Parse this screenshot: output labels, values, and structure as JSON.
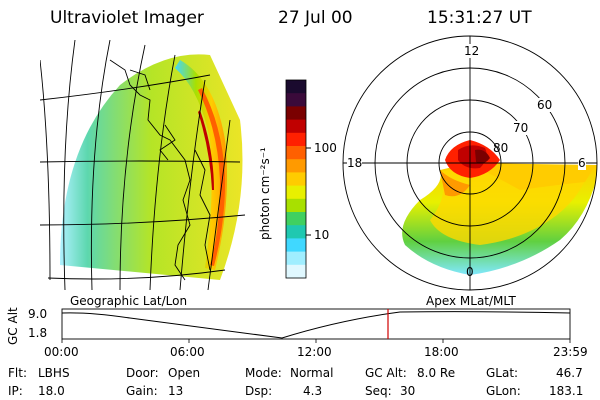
{
  "header": {
    "instrument": "Ultraviolet Imager",
    "date": "27 Jul 00",
    "time": "15:31:27 UT"
  },
  "colorbar": {
    "unit_label": "photon cm⁻²s⁻¹",
    "ticks": [
      "100",
      "10"
    ],
    "colors": [
      "#1a0a2e",
      "#3a0a3a",
      "#7a0000",
      "#c00000",
      "#ff2000",
      "#ff6000",
      "#ff9a00",
      "#ffcc00",
      "#e8f000",
      "#a8e000",
      "#40d060",
      "#20c8b0",
      "#40d8ff",
      "#a0eeff",
      "#e0f8ff"
    ]
  },
  "polar": {
    "ring_labels": [
      "80",
      "70",
      "60"
    ],
    "mlt_labels": {
      "top": "12",
      "left": "18",
      "right": "6",
      "bottom": "0"
    }
  },
  "timeline": {
    "left_title": "Geographic Lat/Lon",
    "right_title": "Apex MLat/MLT",
    "axis_label": "GC Alt",
    "y_ticks": [
      "9.0",
      "1.8"
    ],
    "x_ticks": [
      "00:00",
      "06:00",
      "12:00",
      "18:00",
      "23:59"
    ],
    "marker_time": "15:31"
  },
  "info": {
    "filter_label": "Flt:",
    "filter_value": "LBHS",
    "ip_label": "IP:",
    "ip_value": "18.0",
    "door_label": "Door:",
    "door_value": "Open",
    "gain_label": "Gain:",
    "gain_value": "13",
    "mode_label": "Mode:",
    "mode_value": "Normal",
    "dsp_label": "Dsp:",
    "dsp_value": "4.3",
    "gcalt_label": "GC Alt:",
    "gcalt_value": "8.0 Re",
    "seq_label": "Seq:",
    "seq_value": "30",
    "glat_label": "GLat:",
    "glat_value": "46.7",
    "glon_label": "GLon:",
    "glon_value": "183.1"
  }
}
